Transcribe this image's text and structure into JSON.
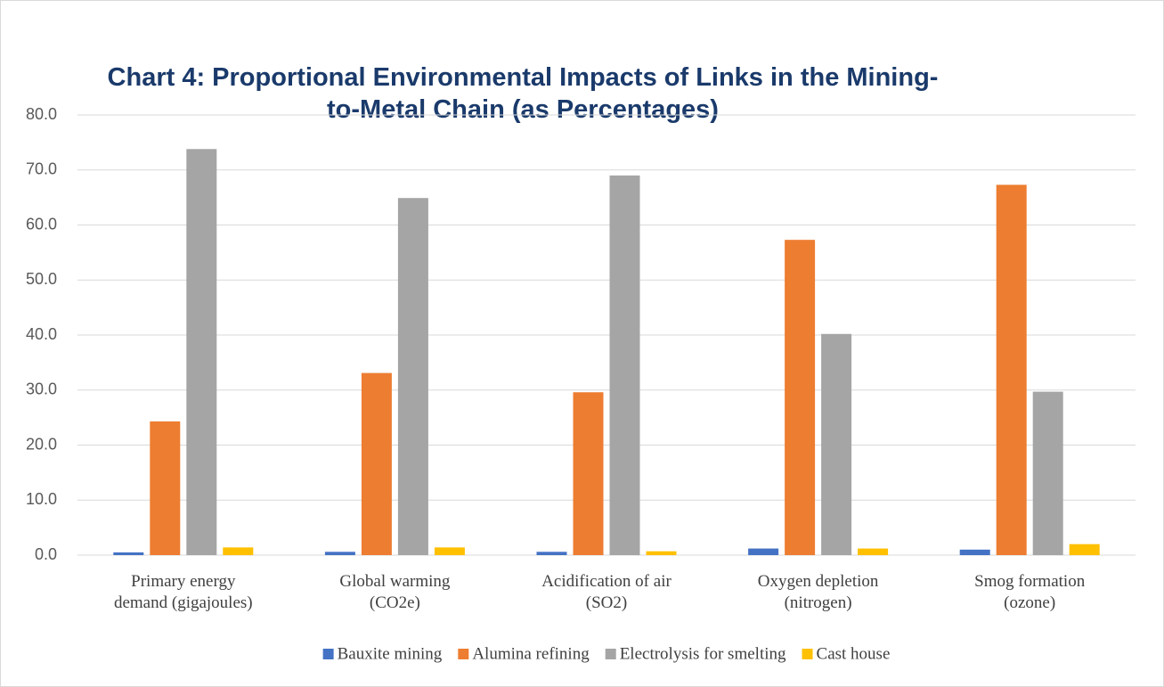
{
  "chart_data": {
    "type": "bar",
    "title": "Chart 4: Proportional Environmental Impacts of Links in the Mining-\nto-Metal Chain (as Percentages)",
    "categories": [
      "Primary energy\ndemand (gigajoules)",
      "Global warming\n(CO2e)",
      "Acidification of air\n(SO2)",
      "Oxygen depletion\n(nitrogen)",
      "Smog formation\n(ozone)"
    ],
    "series": [
      {
        "name": "Bauxite mining",
        "color": "#4472c4",
        "values": [
          0.5,
          0.6,
          0.6,
          1.2,
          1.0
        ]
      },
      {
        "name": "Alumina refining",
        "color": "#ed7d31",
        "values": [
          24.3,
          33.1,
          29.6,
          57.3,
          67.3
        ]
      },
      {
        "name": "Electrolysis for smelting",
        "color": "#a5a5a5",
        "values": [
          73.8,
          64.9,
          69.0,
          40.2,
          29.7
        ]
      },
      {
        "name": "Cast house",
        "color": "#ffc000",
        "values": [
          1.4,
          1.4,
          0.7,
          1.2,
          2.0
        ]
      }
    ],
    "ylim": [
      0,
      80
    ],
    "yticks": [
      {
        "value": 0,
        "label": "0.0"
      },
      {
        "value": 10,
        "label": "10.0"
      },
      {
        "value": 20,
        "label": "20.0"
      },
      {
        "value": 30,
        "label": "30.0"
      },
      {
        "value": 40,
        "label": "40.0"
      },
      {
        "value": 50,
        "label": "50.0"
      },
      {
        "value": 60,
        "label": "60.0"
      },
      {
        "value": 70,
        "label": "70.0"
      },
      {
        "value": 80,
        "label": "80.0"
      }
    ],
    "grid": true,
    "legend": "bottom"
  }
}
